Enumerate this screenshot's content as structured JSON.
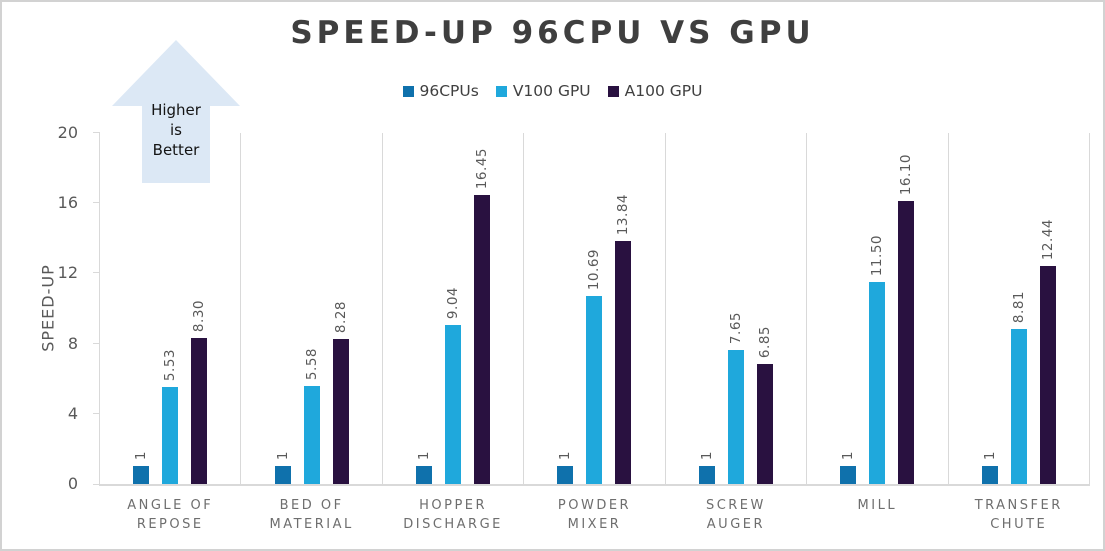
{
  "chart_data": {
    "type": "bar",
    "title": "SPEED-UP 96CPU VS GPU",
    "ylabel": "SPEED-UP",
    "xlabel": "",
    "ylim": [
      0,
      20
    ],
    "yticks": [
      0,
      4,
      8,
      12,
      16,
      20
    ],
    "grid": "vertical-category-separators",
    "legend_position": "top-center",
    "categories": [
      "ANGLE OF\nREPOSE",
      "BED OF\nMATERIAL",
      "HOPPER\nDISCHARGE",
      "POWDER\nMIXER",
      "SCREW\nAUGER",
      "MILL",
      "TRANSFER\nCHUTE"
    ],
    "series": [
      {
        "name": "96CPUs",
        "color": "#0f71ac",
        "values": [
          1,
          1,
          1,
          1,
          1,
          1,
          1
        ],
        "value_labels": [
          "1",
          "1",
          "1",
          "1",
          "1",
          "1",
          "1"
        ]
      },
      {
        "name": "V100 GPU",
        "color": "#1fa8dc",
        "values": [
          5.53,
          5.58,
          9.04,
          10.69,
          7.65,
          11.5,
          8.81
        ],
        "value_labels": [
          "5.53",
          "5.58",
          "9.04",
          "10.69",
          "7.65",
          "11.50",
          "8.81"
        ]
      },
      {
        "name": "A100 GPU",
        "color": "#291140",
        "values": [
          8.3,
          8.28,
          16.45,
          13.84,
          6.85,
          16.1,
          12.44
        ],
        "value_labels": [
          "8.30",
          "8.28",
          "16.45",
          "13.84",
          "6.85",
          "16.10",
          "12.44"
        ]
      }
    ],
    "annotation": {
      "text": "Higher\nis\nBetter",
      "shape": "up-arrow",
      "fill": "#dce8f5"
    }
  },
  "colors": {
    "background": "#ffffff",
    "frame_border": "#d2d2d2",
    "axis_line": "#d9d9d9",
    "title_text": "#3f3f3f",
    "legend_text": "#404040",
    "tick_text": "#595959",
    "category_text": "#6e6e6e",
    "value_label_text": "#595959"
  }
}
